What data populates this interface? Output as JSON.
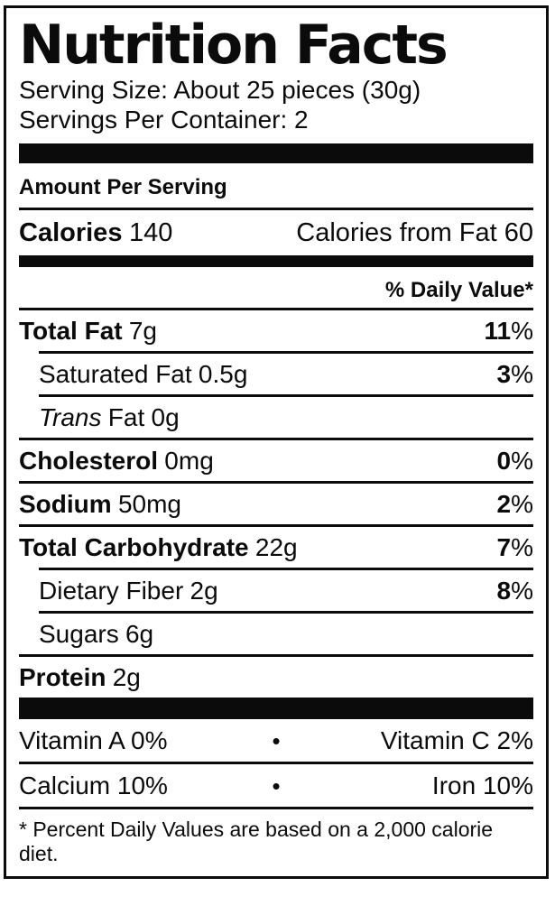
{
  "colors": {
    "ink": "#0b0b0b",
    "background": "#ffffff"
  },
  "label": {
    "title": "Nutrition Facts",
    "serving_size": "Serving Size: About 25 pieces (30g)",
    "servings_per_container": "Servings Per Container: 2",
    "amount_per_serving": "Amount Per Serving",
    "calories": {
      "label": "Calories",
      "value": "140",
      "from_fat": "Calories from Fat 60"
    },
    "daily_value_header": "% Daily Value*",
    "rows": [
      {
        "italic": "",
        "name": "Total Fat",
        "amount": "7g",
        "dv": "11",
        "pct": "%"
      },
      {
        "italic": "",
        "name": "Saturated Fat",
        "amount": "0.5g",
        "dv": "3",
        "pct": "%"
      },
      {
        "italic": "Trans",
        "name": "Fat",
        "amount": "0g",
        "dv": "",
        "pct": ""
      },
      {
        "italic": "",
        "name": "Cholesterol",
        "amount": "0mg",
        "dv": "0",
        "pct": "%"
      },
      {
        "italic": "",
        "name": "Sodium",
        "amount": "50mg",
        "dv": "2",
        "pct": "%"
      },
      {
        "italic": "",
        "name": "Total Carbohydrate",
        "amount": "22g",
        "dv": "7",
        "pct": "%"
      },
      {
        "italic": "",
        "name": "Dietary Fiber",
        "amount": "2g",
        "dv": "8",
        "pct": "%"
      },
      {
        "italic": "",
        "name": "Sugars",
        "amount": "6g",
        "dv": "",
        "pct": ""
      },
      {
        "italic": "",
        "name": "Protein",
        "amount": "2g",
        "dv": "",
        "pct": ""
      }
    ],
    "vitamins": [
      {
        "left": "Vitamin A 0%",
        "bullet": "•",
        "right": "Vitamin C 2%"
      },
      {
        "left": "Calcium 10%",
        "bullet": "•",
        "right": "Iron 10%"
      }
    ],
    "footnote": "* Percent Daily Values are based on a 2,000 calorie diet."
  }
}
